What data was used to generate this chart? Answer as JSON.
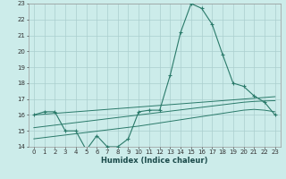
{
  "xlabel": "Humidex (Indice chaleur)",
  "x_values": [
    0,
    1,
    2,
    3,
    4,
    5,
    6,
    7,
    8,
    9,
    10,
    11,
    12,
    13,
    14,
    15,
    16,
    17,
    18,
    19,
    20,
    21,
    22,
    23
  ],
  "line1_y": [
    16.0,
    16.2,
    16.2,
    15.0,
    15.0,
    13.8,
    14.7,
    14.0,
    14.0,
    14.5,
    16.2,
    16.3,
    16.3,
    18.5,
    21.2,
    23.0,
    22.7,
    21.7,
    19.8,
    18.0,
    17.8,
    17.2,
    16.8,
    16.0
  ],
  "line2_y": [
    16.0,
    16.05,
    16.1,
    16.15,
    16.2,
    16.25,
    16.3,
    16.35,
    16.4,
    16.45,
    16.5,
    16.55,
    16.6,
    16.65,
    16.7,
    16.75,
    16.8,
    16.85,
    16.9,
    16.95,
    17.0,
    17.05,
    17.1,
    17.15
  ],
  "line3_y": [
    15.2,
    15.28,
    15.36,
    15.44,
    15.52,
    15.6,
    15.68,
    15.76,
    15.84,
    15.92,
    16.0,
    16.08,
    16.16,
    16.24,
    16.32,
    16.4,
    16.48,
    16.56,
    16.64,
    16.72,
    16.8,
    16.85,
    16.88,
    16.9
  ],
  "line4_y": [
    14.5,
    14.58,
    14.66,
    14.74,
    14.82,
    14.9,
    14.98,
    15.06,
    15.14,
    15.22,
    15.3,
    15.4,
    15.5,
    15.6,
    15.7,
    15.8,
    15.9,
    16.0,
    16.1,
    16.2,
    16.3,
    16.35,
    16.3,
    16.2
  ],
  "line_color": "#2a7a6a",
  "bg_color": "#ccecea",
  "grid_color": "#aacece",
  "ylim": [
    14,
    23
  ],
  "xlim": [
    -0.5,
    23.5
  ],
  "yticks": [
    14,
    15,
    16,
    17,
    18,
    19,
    20,
    21,
    22,
    23
  ],
  "xticks": [
    0,
    1,
    2,
    3,
    4,
    5,
    6,
    7,
    8,
    9,
    10,
    11,
    12,
    13,
    14,
    15,
    16,
    17,
    18,
    19,
    20,
    21,
    22,
    23
  ],
  "tick_fontsize": 5,
  "xlabel_fontsize": 6,
  "marker_size": 3
}
